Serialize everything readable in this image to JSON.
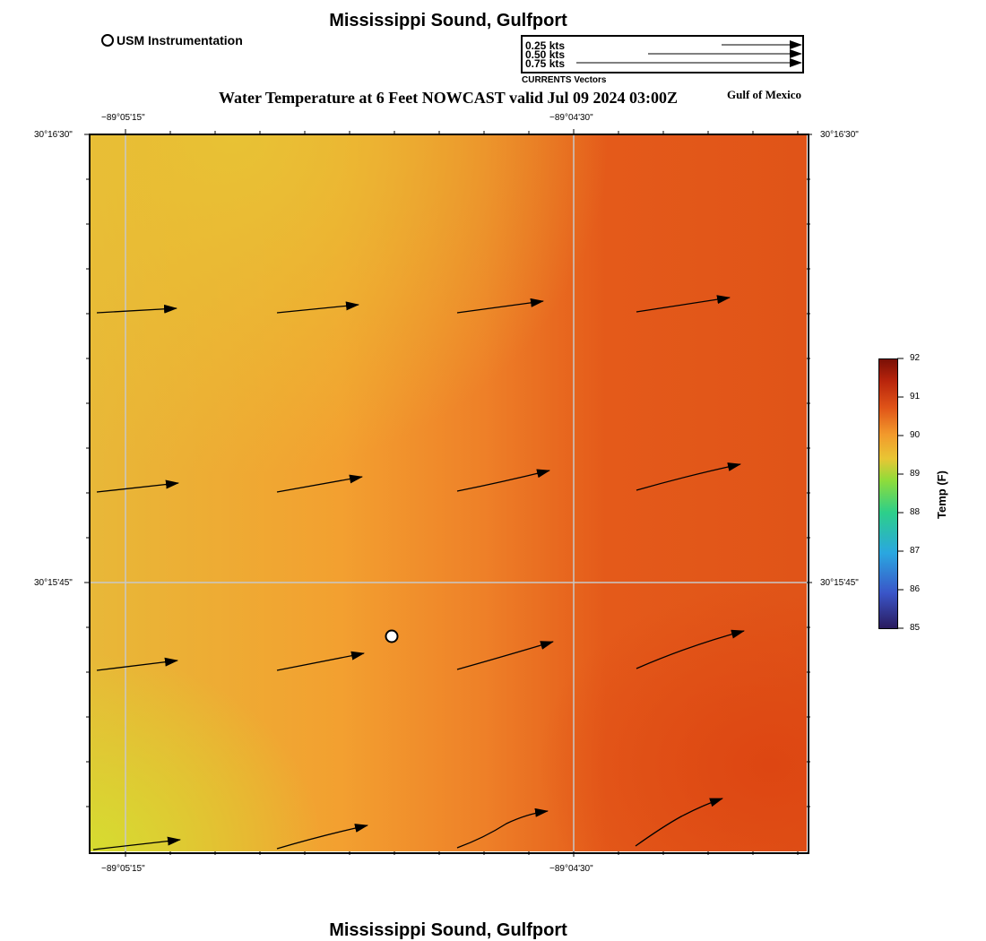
{
  "header": {
    "title": "Mississippi Sound, Gulfport",
    "subtitle": "Water Temperature at 6 Feet NOWCAST valid Jul 09 2024 03:00Z",
    "region": "Gulf of Mexico"
  },
  "footer": {
    "title": "Mississippi Sound, Gulfport"
  },
  "instrument_legend": {
    "label": "USM Instrumentation"
  },
  "vector_legend": {
    "entries": [
      "0.25 kts",
      "0.50 kts",
      "0.75 kts"
    ],
    "caption": "CURRENTS Vectors"
  },
  "axes": {
    "top_ticks": [
      "−89°05'15\"",
      "−89°04'30\""
    ],
    "bottom_ticks": [
      "−89°05'15\"",
      "−89°04'30\""
    ],
    "left_ticks": [
      "30°16'30\"",
      "30°15'45\""
    ],
    "right_ticks": [
      "30°16'30\"",
      "30°15'45\""
    ]
  },
  "colorbar": {
    "title": "Temp (F)",
    "ticks": [
      "92",
      "91",
      "90",
      "89",
      "88",
      "87",
      "86",
      "85"
    ],
    "range": [
      85,
      92
    ],
    "colors": [
      "#2a1b5e",
      "#3a55c8",
      "#2aa7e0",
      "#2ccf8a",
      "#8fdc3a",
      "#e8c634",
      "#f29a2c",
      "#e05418",
      "#b8240c",
      "#7a1006"
    ]
  },
  "map": {
    "type": "temperature-field-with-current-vectors",
    "temperature_range_shown_f": [
      89,
      91.2
    ],
    "instrument_station": {
      "symbol": "white-circle"
    }
  }
}
